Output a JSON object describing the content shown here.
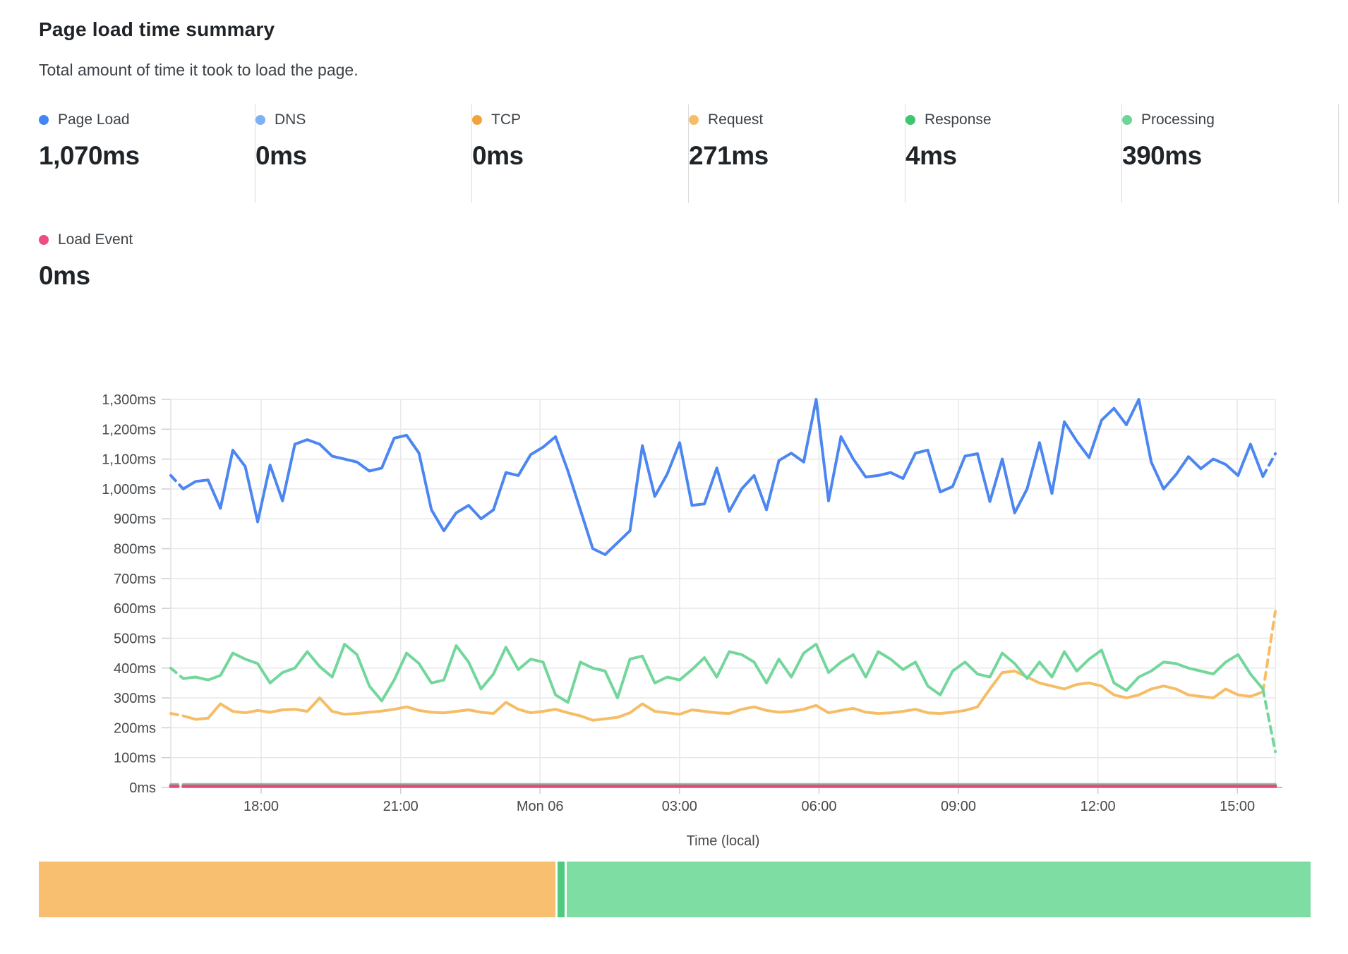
{
  "header": {
    "title": "Page load time summary",
    "subtitle": "Total amount of time it took to load the page."
  },
  "metrics": [
    {
      "label": "Page Load",
      "value": "1,070ms",
      "color": "#4285f4"
    },
    {
      "label": "DNS",
      "value": "0ms",
      "color": "#7fb1f7"
    },
    {
      "label": "TCP",
      "value": "0ms",
      "color": "#f2a43c"
    },
    {
      "label": "Request",
      "value": "271ms",
      "color": "#f6bd66"
    },
    {
      "label": "Response",
      "value": "4ms",
      "color": "#3fc46f"
    },
    {
      "label": "Processing",
      "value": "390ms",
      "color": "#6ed598"
    },
    {
      "label": "Load Event",
      "value": "0ms",
      "color": "#ee4c82"
    }
  ],
  "chart_data": {
    "type": "line",
    "title": "Page load time summary",
    "xlabel": "Time (local)",
    "ylabel": "",
    "ylim": [
      0,
      1300
    ],
    "grid": true,
    "legend_position": "top-metrics",
    "y_ticks": [
      {
        "v": 0,
        "label": "0ms"
      },
      {
        "v": 100,
        "label": "100ms"
      },
      {
        "v": 200,
        "label": "200ms"
      },
      {
        "v": 300,
        "label": "300ms"
      },
      {
        "v": 400,
        "label": "400ms"
      },
      {
        "v": 500,
        "label": "500ms"
      },
      {
        "v": 600,
        "label": "600ms"
      },
      {
        "v": 700,
        "label": "700ms"
      },
      {
        "v": 800,
        "label": "800ms"
      },
      {
        "v": 900,
        "label": "900ms"
      },
      {
        "v": 1000,
        "label": "1,000ms"
      },
      {
        "v": 1100,
        "label": "1,100ms"
      },
      {
        "v": 1200,
        "label": "1,200ms"
      },
      {
        "v": 1300,
        "label": "1,300ms"
      }
    ],
    "x_ticks": [
      {
        "f": 0.0818,
        "label": "18:00"
      },
      {
        "f": 0.2081,
        "label": "21:00"
      },
      {
        "f": 0.3343,
        "label": "Mon 06"
      },
      {
        "f": 0.4606,
        "label": "03:00"
      },
      {
        "f": 0.5869,
        "label": "06:00"
      },
      {
        "f": 0.7131,
        "label": "09:00"
      },
      {
        "f": 0.8394,
        "label": "12:00"
      },
      {
        "f": 0.9656,
        "label": "15:00"
      }
    ],
    "series": [
      {
        "name": "Request",
        "color": "#f6bd66",
        "width": 4,
        "dash_head": true,
        "dash_tail": true,
        "values": [
          248,
          240,
          228,
          232,
          280,
          255,
          250,
          258,
          252,
          260,
          262,
          255,
          300,
          255,
          245,
          248,
          252,
          256,
          262,
          270,
          258,
          252,
          250,
          255,
          260,
          252,
          248,
          285,
          262,
          250,
          255,
          262,
          250,
          240,
          225,
          230,
          235,
          250,
          280,
          255,
          250,
          245,
          260,
          255,
          250,
          248,
          262,
          270,
          258,
          252,
          255,
          262,
          275,
          250,
          258,
          265,
          252,
          248,
          250,
          255,
          262,
          250,
          248,
          252,
          258,
          270,
          330,
          385,
          390,
          370,
          350,
          340,
          330,
          345,
          350,
          340,
          310,
          300,
          310,
          330,
          340,
          330,
          310,
          305,
          300,
          330,
          310,
          305,
          320,
          590
        ]
      },
      {
        "name": "Processing",
        "color": "#73d79c",
        "width": 4,
        "dash_head": true,
        "dash_tail": true,
        "values": [
          400,
          365,
          370,
          360,
          375,
          450,
          430,
          415,
          350,
          385,
          400,
          455,
          405,
          370,
          480,
          445,
          340,
          290,
          360,
          450,
          415,
          350,
          360,
          475,
          420,
          330,
          380,
          470,
          395,
          430,
          420,
          310,
          285,
          420,
          400,
          390,
          300,
          430,
          440,
          350,
          370,
          360,
          395,
          435,
          370,
          455,
          445,
          420,
          350,
          430,
          370,
          450,
          480,
          385,
          420,
          445,
          370,
          455,
          430,
          395,
          420,
          340,
          310,
          390,
          420,
          380,
          370,
          450,
          415,
          365,
          420,
          370,
          455,
          390,
          430,
          460,
          350,
          325,
          370,
          390,
          420,
          415,
          400,
          390,
          380,
          420,
          445,
          380,
          330,
          120
        ]
      },
      {
        "name": "Response",
        "color": "#6ed598",
        "width": 4,
        "dash_head": true,
        "dash_tail": false,
        "flat": 10,
        "points": 90
      },
      {
        "name": "Load Event",
        "color": "#e8497f",
        "width": 5,
        "dash_head": true,
        "dash_tail": false,
        "flat": 4,
        "points": 90
      },
      {
        "name": "Page Load",
        "color": "#4c86f1",
        "width": 4,
        "dash_head": true,
        "dash_tail": true,
        "values": [
          1045,
          1000,
          1025,
          1030,
          935,
          1130,
          1075,
          890,
          1080,
          960,
          1150,
          1165,
          1150,
          1110,
          1100,
          1090,
          1060,
          1070,
          1170,
          1180,
          1120,
          930,
          860,
          920,
          945,
          900,
          930,
          1055,
          1045,
          1115,
          1140,
          1175,
          1060,
          930,
          800,
          780,
          820,
          860,
          1145,
          975,
          1050,
          1155,
          945,
          950,
          1070,
          925,
          1000,
          1045,
          930,
          1095,
          1120,
          1090,
          1300,
          960,
          1175,
          1100,
          1040,
          1045,
          1055,
          1035,
          1120,
          1130,
          990,
          1008,
          1110,
          1118,
          958,
          1100,
          920,
          1000,
          1155,
          985,
          1225,
          1160,
          1105,
          1230,
          1270,
          1215,
          1300,
          1090,
          1000,
          1048,
          1108,
          1068,
          1100,
          1082,
          1045,
          1150,
          1042,
          1118
        ]
      }
    ],
    "footer_bar": {
      "segments": [
        {
          "name": "request-share",
          "color": "#f7bf6f",
          "width_pct": 40.62
        },
        {
          "name": "connection-share",
          "color": "#4fca7f",
          "width_pct": 0.55
        },
        {
          "name": "processing-share",
          "color": "#7edda2",
          "width_pct": 58.5
        }
      ]
    }
  }
}
